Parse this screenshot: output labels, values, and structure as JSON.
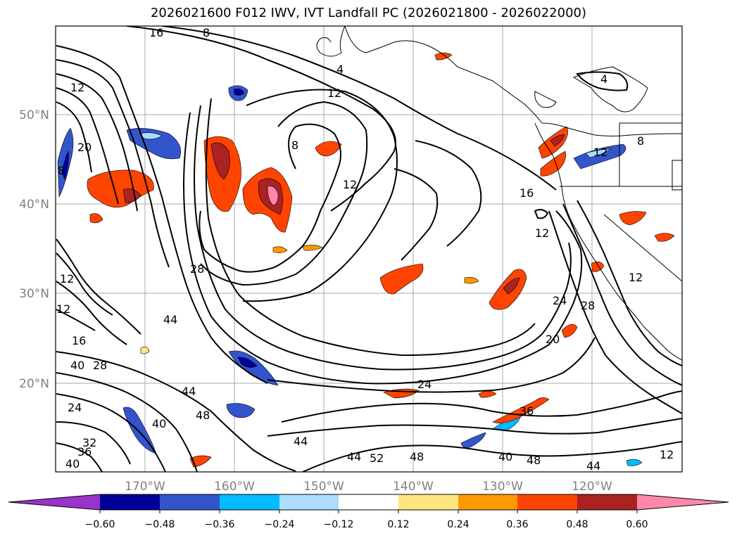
{
  "title": "2026021600 F012 IWV, IVT Landfall PC (2026021800 - 2026022000)",
  "map": {
    "lat_labels": [
      "50°N",
      "40°N",
      "30°N",
      "20°N"
    ],
    "lon_labels": [
      "170°W",
      "160°W",
      "150°W",
      "140°W",
      "130°W",
      "120°W"
    ],
    "contour_labels": [
      "16",
      "8",
      "4",
      "12",
      "8",
      "12",
      "12",
      "16",
      "12",
      "20",
      "8",
      "12",
      "44",
      "28",
      "16",
      "40",
      "28",
      "24",
      "44",
      "48",
      "40",
      "32",
      "36",
      "40",
      "44",
      "44",
      "52",
      "48",
      "40",
      "48",
      "44",
      "24",
      "36",
      "24",
      "28",
      "20",
      "12",
      "8",
      "4",
      "12",
      "12",
      "12"
    ]
  },
  "colorbar": {
    "ticks": [
      "−0.60",
      "−0.48",
      "−0.36",
      "−0.24",
      "−0.12",
      "0.12",
      "0.24",
      "0.36",
      "0.48",
      "0.60"
    ],
    "colors": [
      "#9933cc",
      "#000099",
      "#3355cc",
      "#00bbff",
      "#aaddff",
      "#ffffff",
      "#ffe680",
      "#ff9900",
      "#ff4400",
      "#aa2222",
      "#ff88aa"
    ]
  }
}
